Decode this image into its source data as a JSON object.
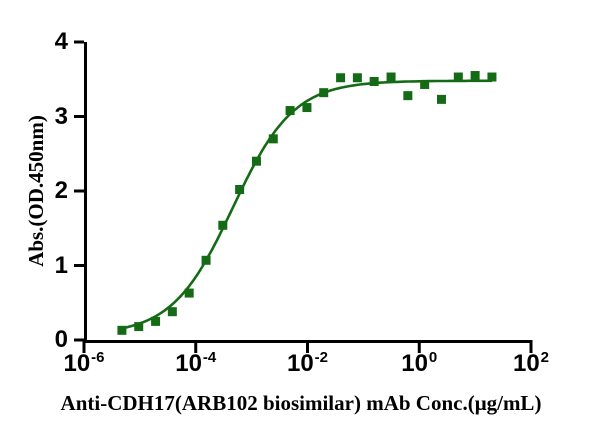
{
  "figure": {
    "background": "#ffffff",
    "axis_color": "#000000",
    "series_color": "#156b15"
  },
  "chart_data": {
    "type": "scatter",
    "title": "",
    "xlabel": "Anti-CDH17(ARB102 biosimilar) mAb Conc.(μg/mL)",
    "ylabel": "Abs.(OD.450nm)",
    "x_scale": "log10",
    "xlim_exponents": [
      -6,
      2
    ],
    "ylim": [
      0,
      4
    ],
    "x_tick_exponents": [
      -6,
      -4,
      -2,
      0,
      2
    ],
    "x_tick_base": "10",
    "y_ticks": [
      0,
      1,
      2,
      3,
      4
    ],
    "grid": false,
    "legend": "none",
    "series": [
      {
        "name": "Anti-CDH17(ARB102 biosimilar) mAb",
        "marker": "square",
        "color": "#156b15",
        "x": [
          4.77e-06,
          9.54e-06,
          1.91e-05,
          3.81e-05,
          7.63e-05,
          0.000153,
          0.000305,
          0.00061,
          0.00122,
          0.00244,
          0.00488,
          0.00977,
          0.0195,
          0.0391,
          0.0781,
          0.156,
          0.313,
          0.625,
          1.25,
          2.5,
          5,
          10,
          20
        ],
        "y": [
          0.13,
          0.18,
          0.25,
          0.38,
          0.63,
          1.07,
          1.54,
          2.02,
          2.4,
          2.7,
          3.08,
          3.12,
          3.32,
          3.52,
          3.52,
          3.47,
          3.53,
          3.28,
          3.43,
          3.23,
          3.53,
          3.55,
          3.53
        ]
      }
    ],
    "fit_curve": {
      "model": "4PL",
      "bottom": 0.07,
      "top": 3.48,
      "ec50": 0.00046,
      "hill": 0.8,
      "x_range": [
        4.77e-06,
        20
      ]
    }
  }
}
